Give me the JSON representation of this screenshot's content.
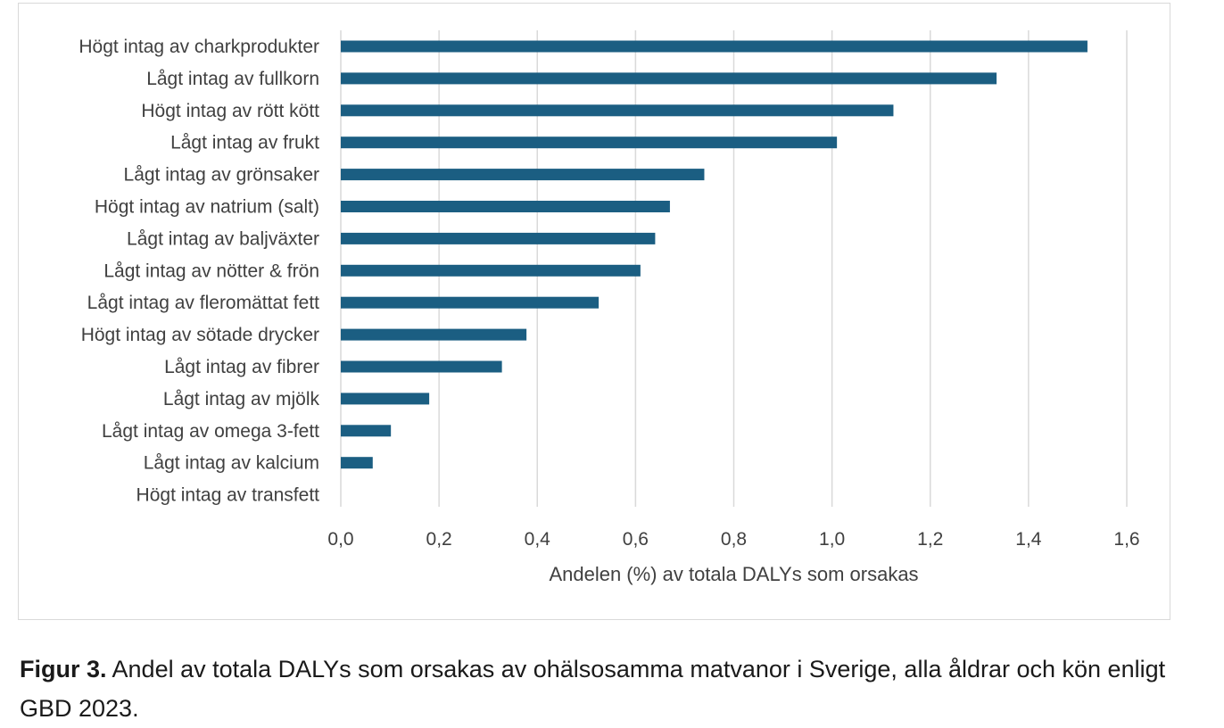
{
  "chart_data": {
    "type": "bar",
    "orientation": "horizontal",
    "categories": [
      "Högt intag av charkprodukter",
      "Lågt intag av fullkorn",
      "Högt intag av rött kött",
      "Lågt intag av frukt ",
      "Lågt intag av grönsaker",
      "Högt intag av natrium (salt)",
      "Lågt intag av baljväxter",
      "Lågt intag av nötter & frön",
      "Lågt intag av fleromättat fett",
      "Högt intag av sötade drycker",
      "Lågt intag av fibrer",
      "Lågt intag av mjölk",
      "Lågt intag av omega 3-fett",
      "Lågt intag av kalcium",
      "Högt intag av transfett"
    ],
    "values": [
      1.52,
      1.335,
      1.125,
      1.01,
      0.74,
      0.67,
      0.64,
      0.61,
      0.525,
      0.378,
      0.328,
      0.18,
      0.102,
      0.065,
      0.0
    ],
    "xlim": [
      0,
      1.6
    ],
    "xticks": [
      "0,0",
      "0,2",
      "0,4",
      "0,6",
      "0,8",
      "1,0",
      "1,2",
      "1,4",
      "1,6"
    ],
    "xlabel": "Andelen (%) av totala DALYs som orsakas",
    "ylabel": "",
    "grid": true,
    "bar_color": "#1b5e82",
    "grid_color": "#d9d9d9"
  },
  "caption": {
    "label": "Figur 3.",
    "text": " Andel av totala DALYs som orsakas av ohälsosamma matvanor i Sverige, alla åldrar och kön enligt GBD 2023."
  }
}
